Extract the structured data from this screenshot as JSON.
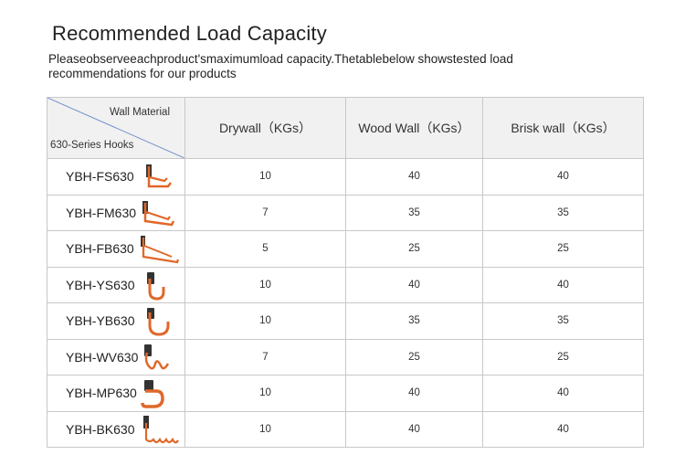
{
  "title": "Recommended Load Capacity",
  "subtitle": "Pleaseobserveeachproduct'smaximumload capacity.Thetablebelow showstested load recommendations for our products",
  "table": {
    "corner_top": "Wall Material",
    "corner_bottom": "630-Series Hooks",
    "columns": [
      "Drywall（KGs）",
      "Wood Wall（KGs）",
      "Brisk wall（KGs）"
    ],
    "rows": [
      {
        "model": "YBH-FS630",
        "icon": "fs-hook-icon",
        "values": [
          "10",
          "40",
          "40"
        ]
      },
      {
        "model": "YBH-FM630",
        "icon": "fm-hook-icon",
        "values": [
          "7",
          "35",
          "35"
        ]
      },
      {
        "model": "YBH-FB630",
        "icon": "fb-hook-icon",
        "values": [
          "5",
          "25",
          "25"
        ]
      },
      {
        "model": "YBH-YS630",
        "icon": "ys-hook-icon",
        "values": [
          "10",
          "40",
          "40"
        ]
      },
      {
        "model": "YBH-YB630",
        "icon": "yb-hook-icon",
        "values": [
          "10",
          "35",
          "35"
        ]
      },
      {
        "model": "YBH-WV630",
        "icon": "wv-hook-icon",
        "values": [
          "7",
          "25",
          "25"
        ]
      },
      {
        "model": "YBH-MP630",
        "icon": "mp-hook-icon",
        "values": [
          "10",
          "40",
          "40"
        ]
      },
      {
        "model": "YBH-BK630",
        "icon": "bk-hook-icon",
        "values": [
          "10",
          "40",
          "40"
        ]
      }
    ]
  },
  "colors": {
    "hook": "#e0682a",
    "bracket": "#333333",
    "header_bg": "#f1f1f1",
    "border": "#c8c8c8"
  }
}
